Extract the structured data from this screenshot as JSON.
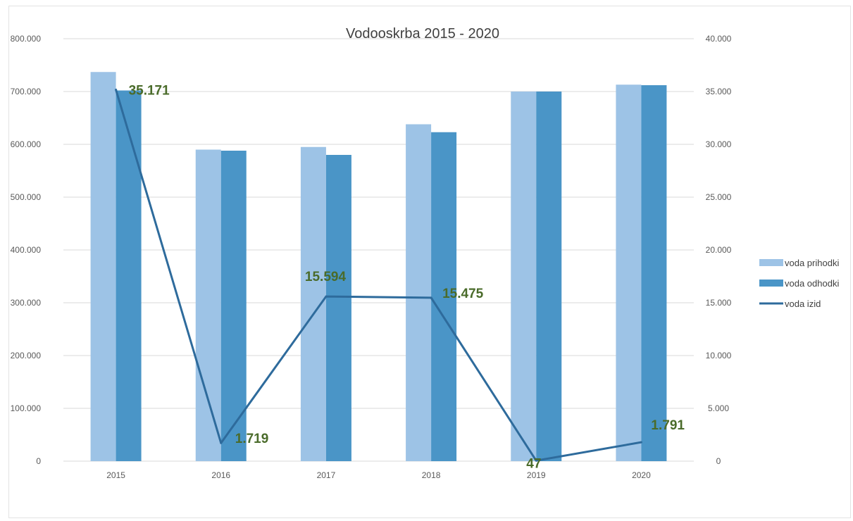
{
  "chart_data": {
    "type": "bar",
    "title": "Vodooskrba  2015 - 2020",
    "categories": [
      "2015",
      "2016",
      "2017",
      "2018",
      "2019",
      "2020"
    ],
    "series": [
      {
        "name": "voda prihodki",
        "type": "bar",
        "axis": "left",
        "color": "#9dc3e6",
        "values": [
          737000,
          590000,
          595000,
          638000,
          700000,
          713000
        ]
      },
      {
        "name": "voda odhodki",
        "type": "bar",
        "axis": "left",
        "color": "#4a95c7",
        "values": [
          702000,
          588000,
          580000,
          623000,
          700000,
          712000
        ]
      },
      {
        "name": "voda izid",
        "type": "line",
        "axis": "right",
        "color": "#2e6b9c",
        "values": [
          35171,
          1719,
          15594,
          15475,
          47,
          1791
        ],
        "labels": [
          "35.171",
          "1.719",
          "15.594",
          "15.475",
          "47",
          "1.791"
        ]
      }
    ],
    "y_left": {
      "min": 0,
      "max": 800000,
      "ticks": [
        0,
        100000,
        200000,
        300000,
        400000,
        500000,
        600000,
        700000,
        800000
      ],
      "tick_labels": [
        "0",
        "100.000",
        "200.000",
        "300.000",
        "400.000",
        "500.000",
        "600.000",
        "700.000",
        "800.000"
      ]
    },
    "y_right": {
      "min": 0,
      "max": 40000,
      "ticks": [
        0,
        5000,
        10000,
        15000,
        20000,
        25000,
        30000,
        35000,
        40000
      ],
      "tick_labels": [
        "0",
        "5.000",
        "10.000",
        "15.000",
        "20.000",
        "25.000",
        "30.000",
        "35.000",
        "40.000"
      ]
    },
    "grid": true,
    "legend": "right"
  }
}
